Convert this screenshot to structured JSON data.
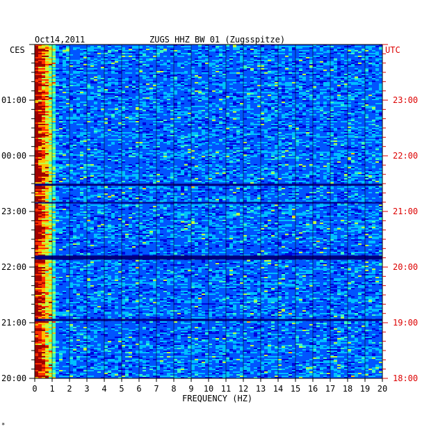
{
  "header": {
    "date": "Oct14,2011",
    "station": "ZUGS HHZ BW 01 (Zugsspitze)"
  },
  "left_axis_unit": "CES",
  "right_axis_unit": "UTC",
  "footer_mark": "*",
  "chart_data": {
    "type": "heatmap",
    "title": "ZUGS HHZ BW 01 (Zugsspitze)",
    "date": "Oct14,2011",
    "xlabel": "FREQUENCY (HZ)",
    "x_ticks": [
      "0",
      "1",
      "2",
      "3",
      "4",
      "5",
      "6",
      "7",
      "8",
      "9",
      "10",
      "11",
      "12",
      "13",
      "14",
      "15",
      "16",
      "17",
      "18",
      "19",
      "20"
    ],
    "xlim": [
      0,
      20
    ],
    "left_ticks": [
      "01:00",
      "00:00",
      "23:00",
      "22:00",
      "21:00",
      "20:00"
    ],
    "right_ticks": [
      "23:00",
      "22:00",
      "21:00",
      "20:00",
      "19:00",
      "18:00"
    ],
    "left_tick_hours": [
      5,
      4,
      3,
      2,
      1,
      0
    ],
    "ylim_hours": [
      0,
      6
    ],
    "minor_tick_interval_minutes": 10,
    "colormap": [
      "#00007f",
      "#0000dd",
      "#0055ff",
      "#00bfff",
      "#40ffbf",
      "#bfff40",
      "#ffbf00",
      "#ff3000",
      "#a00000"
    ],
    "grid": true
  }
}
